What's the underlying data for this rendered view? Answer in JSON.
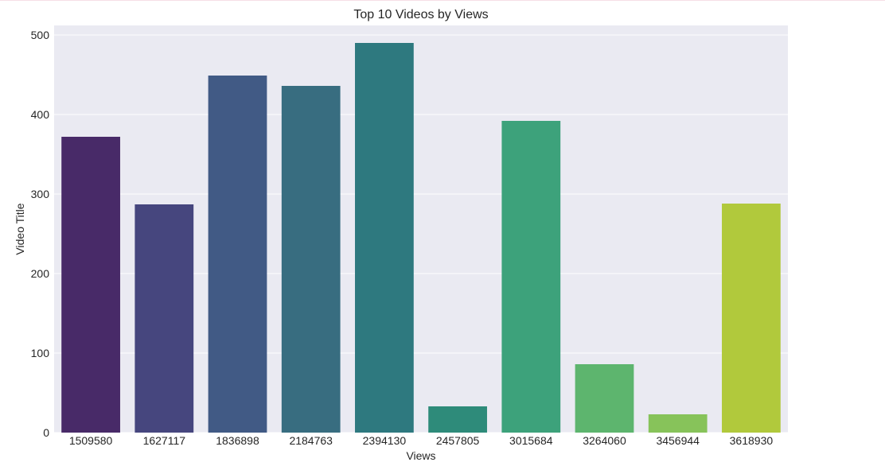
{
  "chart_data": {
    "type": "bar",
    "title": "Top 10 Videos by Views",
    "xlabel": "Views",
    "ylabel": "Video Title",
    "categories": [
      "1509580",
      "1627117",
      "1836898",
      "2184763",
      "2394130",
      "2457805",
      "3015684",
      "3264060",
      "3456944",
      "3618930"
    ],
    "values": [
      372,
      287,
      449,
      436,
      490,
      33,
      392,
      86,
      23,
      288
    ],
    "colors": [
      "#482a68",
      "#46467e",
      "#415a85",
      "#386d80",
      "#2e797f",
      "#2e8b7a",
      "#3da27b",
      "#5db56e",
      "#87c35a",
      "#b1c93c"
    ],
    "yticks": [
      0,
      100,
      200,
      300,
      400,
      500
    ],
    "ylim": [
      0,
      520
    ],
    "grid": true,
    "background": "#eaeaf2"
  }
}
